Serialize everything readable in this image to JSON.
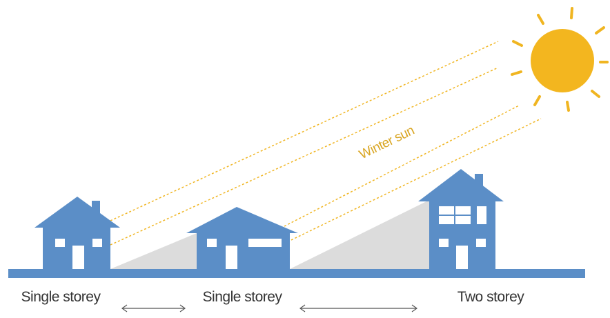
{
  "sun_label": "Winter sun",
  "houses": [
    {
      "label": "Single storey"
    },
    {
      "label": "Single storey"
    },
    {
      "label": "Two storey"
    }
  ]
}
